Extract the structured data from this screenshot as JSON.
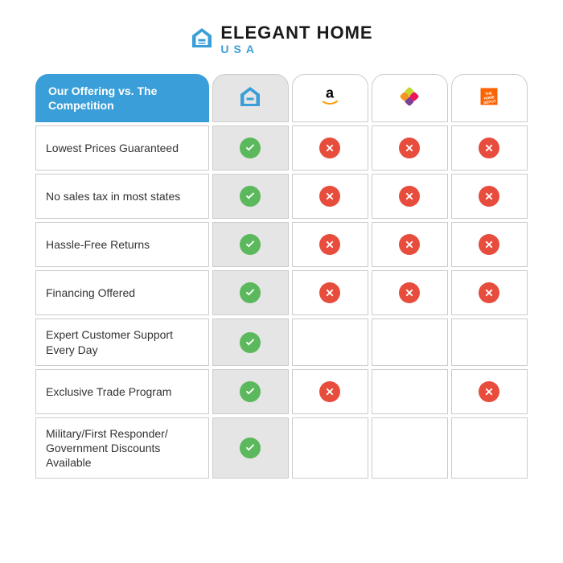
{
  "logo": {
    "main": "ELEGANT HOME",
    "sub": "USA",
    "icon_color": "#3a9fd8"
  },
  "table": {
    "header_label": "Our Offering vs. The Competition",
    "columns": [
      {
        "id": "eleganthome",
        "highlight": true
      },
      {
        "id": "amazon"
      },
      {
        "id": "wayfair"
      },
      {
        "id": "homedepot"
      }
    ],
    "rows": [
      {
        "label": "Lowest Prices Guaranteed",
        "cells": [
          "check",
          "cross",
          "cross",
          "cross"
        ]
      },
      {
        "label": "No sales tax in most states",
        "cells": [
          "check",
          "cross",
          "cross",
          "cross"
        ]
      },
      {
        "label": "Hassle-Free Returns",
        "cells": [
          "check",
          "cross",
          "cross",
          "cross"
        ]
      },
      {
        "label": "Financing Offered",
        "cells": [
          "check",
          "cross",
          "cross",
          "cross"
        ]
      },
      {
        "label": "Expert Customer Support Every Day",
        "cells": [
          "check",
          "",
          "",
          ""
        ]
      },
      {
        "label": "Exclusive Trade Program",
        "cells": [
          "check",
          "cross",
          "",
          "cross"
        ]
      },
      {
        "label": "Military/First Responder/ Government Discounts Available",
        "cells": [
          "check",
          "",
          "",
          ""
        ]
      }
    ]
  },
  "colors": {
    "accent": "#3a9fd8",
    "highlight_bg": "#e5e5e5",
    "check": "#5cb85c",
    "cross": "#e74c3c",
    "border": "#cccccc"
  }
}
